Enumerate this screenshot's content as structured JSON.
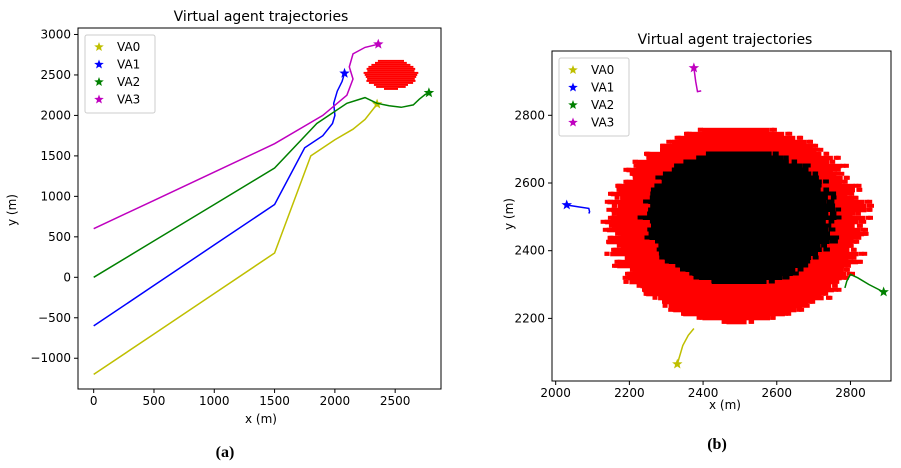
{
  "chart_data": [
    {
      "type": "line",
      "title": "Virtual agent trajectories",
      "xlabel": "x (m)",
      "ylabel": "y (m)",
      "caption": "(a)",
      "xlim": [
        -130,
        2880
      ],
      "ylim": [
        -1380,
        3080
      ],
      "xticks": [
        0,
        500,
        1000,
        1500,
        2000,
        2500
      ],
      "yticks": [
        -1000,
        -500,
        0,
        500,
        1000,
        1500,
        2000,
        2500,
        3000
      ],
      "legend": "top-left",
      "series": [
        {
          "name": "VA0",
          "color": "#bfbf00",
          "x": [
            0,
            500,
            1000,
            1500,
            1800,
            2000,
            2150,
            2250,
            2350
          ],
          "y": [
            -1200,
            -700,
            -200,
            300,
            1500,
            1700,
            1830,
            1950,
            2140
          ],
          "end": [
            2350,
            2140
          ]
        },
        {
          "name": "VA1",
          "color": "#0000ff",
          "x": [
            0,
            500,
            1000,
            1500,
            1750,
            1900,
            1980,
            2000,
            1990,
            2020,
            2060,
            2080
          ],
          "y": [
            -600,
            -100,
            400,
            900,
            1600,
            1750,
            1900,
            2000,
            2150,
            2300,
            2420,
            2520
          ],
          "end": [
            2080,
            2520
          ]
        },
        {
          "name": "VA2",
          "color": "#008000",
          "x": [
            0,
            500,
            1000,
            1500,
            1850,
            2100,
            2250,
            2350,
            2450,
            2550,
            2650,
            2700,
            2750,
            2780
          ],
          "y": [
            0,
            450,
            900,
            1350,
            1900,
            2150,
            2220,
            2150,
            2120,
            2100,
            2130,
            2200,
            2260,
            2280
          ],
          "end": [
            2780,
            2280
          ]
        },
        {
          "name": "VA3",
          "color": "#bf00bf",
          "x": [
            0,
            500,
            1000,
            1500,
            1900,
            2100,
            2150,
            2120,
            2150,
            2250,
            2360
          ],
          "y": [
            600,
            950,
            1300,
            1650,
            2000,
            2250,
            2450,
            2600,
            2760,
            2840,
            2880
          ],
          "end": [
            2360,
            2880
          ]
        }
      ],
      "obstacle": {
        "x": [
          2250,
          2680
        ],
        "y": [
          2330,
          2710
        ],
        "color": "#ff0000"
      }
    },
    {
      "type": "line",
      "title": "Virtual agent trajectories",
      "xlabel": "x (m)",
      "ylabel": "y (m)",
      "caption": "(b)",
      "xlim": [
        1990,
        2910
      ],
      "ylim": [
        2015,
        2990
      ],
      "xticks": [
        2000,
        2200,
        2400,
        2600,
        2800
      ],
      "yticks": [
        2200,
        2400,
        2600,
        2800
      ],
      "legend": "top-left",
      "series": [
        {
          "name": "VA0",
          "color": "#bfbf00",
          "x": [
            2330,
            2345,
            2360,
            2375
          ],
          "y": [
            2065,
            2120,
            2150,
            2170
          ],
          "end": [
            2330,
            2065
          ]
        },
        {
          "name": "VA1",
          "color": "#0000ff",
          "x": [
            2030,
            2060,
            2090,
            2092,
            2090
          ],
          "y": [
            2535,
            2530,
            2525,
            2515,
            2510
          ],
          "end": [
            2030,
            2535
          ]
        },
        {
          "name": "VA2",
          "color": "#008000",
          "x": [
            2785,
            2790,
            2800,
            2820,
            2850,
            2890
          ],
          "y": [
            2290,
            2310,
            2330,
            2320,
            2300,
            2278
          ],
          "end": [
            2890,
            2278
          ]
        },
        {
          "name": "VA3",
          "color": "#bf00bf",
          "x": [
            2375,
            2380,
            2385,
            2395
          ],
          "y": [
            2940,
            2900,
            2870,
            2872
          ],
          "end": [
            2375,
            2940
          ]
        }
      ],
      "obstacle_outer": {
        "cx": 2490,
        "cy": 2485,
        "rx": 340,
        "ry": 290,
        "color": "#ff0000"
      },
      "obstacle_inner": {
        "cx": 2500,
        "cy": 2505,
        "rx": 250,
        "ry": 200,
        "color": "#000000"
      }
    }
  ]
}
